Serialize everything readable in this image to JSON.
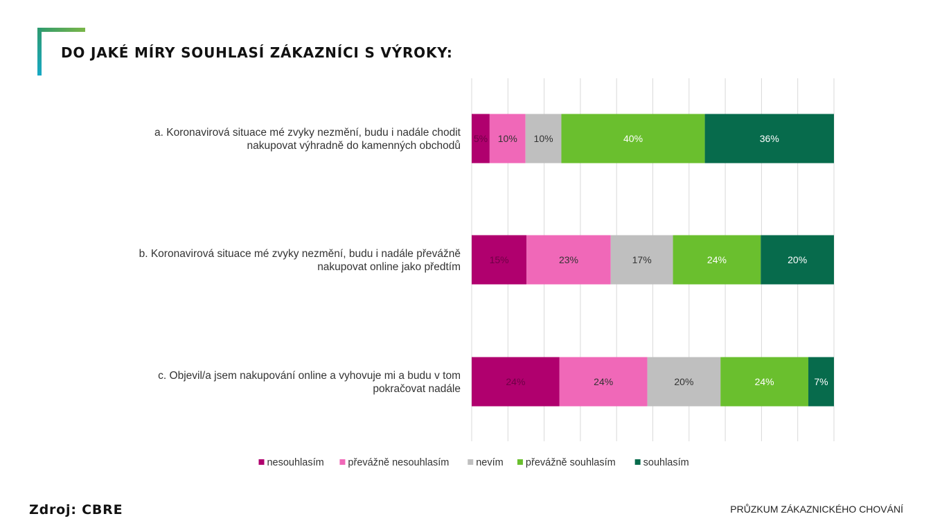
{
  "header": {
    "title": "DO JAKÉ MÍRY SOUHLASÍ ZÁKAZNÍCI S VÝROKY:"
  },
  "footer": {
    "source": "Zdroj: CBRE",
    "survey": "PRŮZKUM ZÁKAZNICKÉHO CHOVÁNÍ"
  },
  "chart_data": {
    "type": "bar",
    "orientation": "horizontal",
    "stacked": true,
    "percent": true,
    "grid": true,
    "legend_position": "bottom",
    "categories": [
      [
        "a. Koronavirová situace mé zvyky nezmění, budu i nadále chodit",
        "nakupovat výhradně do kamenných obchodů"
      ],
      [
        "b. Koronavirová situace mé zvyky nezmění, budu i nadále převážně",
        "nakupovat online jako předtím"
      ],
      [
        "c. Objevil/a jsem nakupování online a vyhovuje mi a budu v tom",
        "pokračovat nadále"
      ]
    ],
    "series": [
      {
        "name": "nesouhlasím",
        "color": "#b0006e",
        "label_color": "#6e0045",
        "values": [
          5,
          15,
          24
        ],
        "labels": [
          "5%",
          "15%",
          "24%"
        ]
      },
      {
        "name": "převážně nesouhlasím",
        "color": "#f068b8",
        "label_color": "#333333",
        "values": [
          10,
          23,
          24
        ],
        "labels": [
          "10%",
          "23%",
          "24%"
        ]
      },
      {
        "name": "nevím",
        "color": "#bfbfbf",
        "label_color": "#333333",
        "values": [
          10,
          17,
          20
        ],
        "labels": [
          "10%",
          "17%",
          "20%"
        ]
      },
      {
        "name": "převážně souhlasím",
        "color": "#6abf2e",
        "label_color": "#ffffff",
        "values": [
          40,
          24,
          24
        ],
        "labels": [
          "40%",
          "24%",
          "24%"
        ]
      },
      {
        "name": "souhlasím",
        "color": "#076b4c",
        "label_color": "#ffffff",
        "values": [
          36,
          20,
          7
        ],
        "labels": [
          "36%",
          "20%",
          "7%"
        ]
      }
    ]
  }
}
